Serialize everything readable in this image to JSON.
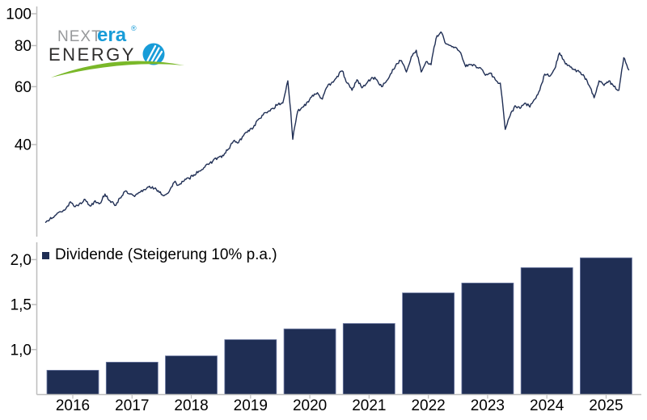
{
  "logo": {
    "text_top_gray": "NEXT",
    "text_top_blue": "era",
    "registered_mark": "®",
    "text_bottom": "ENERGY",
    "colors": {
      "gray": "#97999b",
      "blue": "#189cd8",
      "dark": "#2e2d2c",
      "green": "#7ab829"
    }
  },
  "colors": {
    "series_navy": "#1f2e54",
    "bar_outline": "#6f7ba3",
    "axis_gray": "#bdbdbd",
    "label_black": "#000000",
    "background": "#ffffff"
  },
  "chart_data": [
    {
      "type": "line",
      "y_scale": "log",
      "grid": false,
      "y_ticks": [
        {
          "label": "100",
          "value": 100
        },
        {
          "label": "80",
          "value": 80
        },
        {
          "label": "60",
          "value": 60
        },
        {
          "label": "40",
          "value": 40
        }
      ],
      "ylim": [
        21.5,
        105
      ],
      "x_start_year": 2016,
      "x_end_year": 2026,
      "monthly_values": [
        23.2,
        24.0,
        24.4,
        25.0,
        25.4,
        26.8,
        25.9,
        26.6,
        27.2,
        26.0,
        27.0,
        26.5,
        28.3,
        27.0,
        26.1,
        27.5,
        28.8,
        28.3,
        27.8,
        28.6,
        29.2,
        29.9,
        29.4,
        28.6,
        28.0,
        28.8,
        30.7,
        30.2,
        31.0,
        31.6,
        32.4,
        33.2,
        34.0,
        34.8,
        36.0,
        36.6,
        37.0,
        38.8,
        41.0,
        40.5,
        42.5,
        44.2,
        45.0,
        47.6,
        49.2,
        50.4,
        51.6,
        52.9,
        53.5,
        62.5,
        41.5,
        50.5,
        52.0,
        54.0,
        56.5,
        57.5,
        55.0,
        60.0,
        62.0,
        64.5,
        67.0,
        61.5,
        58.5,
        63.0,
        59.5,
        61.5,
        64.0,
        63.0,
        60.0,
        62.5,
        66.0,
        70.5,
        72.0,
        66.5,
        74.0,
        77.5,
        66.5,
        71.5,
        70.0,
        84.0,
        88.0,
        81.0,
        80.0,
        79.0,
        76.0,
        69.0,
        70.0,
        69.5,
        68.5,
        65.0,
        66.0,
        63.0,
        61.5,
        44.5,
        49.0,
        52.5,
        51.5,
        53.5,
        52.0,
        55.0,
        58.5,
        65.5,
        64.5,
        68.0,
        76.0,
        71.5,
        69.5,
        67.5,
        66.5,
        64.5,
        60.5,
        55.5,
        62.5,
        60.5,
        62.5,
        60.0,
        58.5,
        73.5,
        67.5
      ]
    },
    {
      "type": "bar",
      "legend": "Dividende (Steigerung 10% p.a.)",
      "categories": [
        "2016",
        "2017",
        "2018",
        "2019",
        "2020",
        "2021",
        "2022",
        "2023",
        "2024",
        "2025"
      ],
      "values": [
        0.77,
        0.86,
        0.93,
        1.11,
        1.23,
        1.29,
        1.63,
        1.74,
        1.91,
        2.02
      ],
      "y_ticks": [
        {
          "label": "2,0",
          "value": 2.0
        },
        {
          "label": "1,5",
          "value": 1.5
        },
        {
          "label": "1,0",
          "value": 1.0
        }
      ],
      "ylim": [
        0.5,
        2.1
      ],
      "grid": false,
      "legend_position": "top-left"
    }
  ],
  "render_hints": {
    "noise_seed": 13,
    "noise_amplitude": 0.012,
    "subdivisions_per_month": 5,
    "line_width": 1.4
  }
}
